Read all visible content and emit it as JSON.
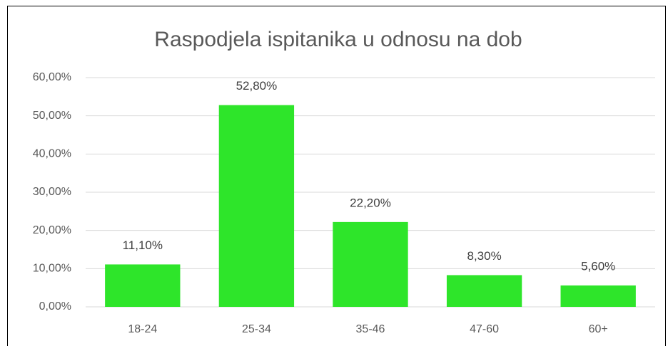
{
  "chart_data": {
    "type": "bar",
    "title": "Raspodjela ispitanika u odnosu na dob",
    "categories": [
      "18-24",
      "25-34",
      "35-46",
      "47-60",
      "60+"
    ],
    "values": [
      11.1,
      52.8,
      22.2,
      8.3,
      5.6
    ],
    "value_labels": [
      "11,10%",
      "52,80%",
      "22,20%",
      "8,30%",
      "5,60%"
    ],
    "color": "#2ee52a",
    "ylim": [
      0,
      60
    ],
    "yticks": [
      {
        "value": 0,
        "label": "0,00%"
      },
      {
        "value": 10,
        "label": "10,00%"
      },
      {
        "value": 20,
        "label": "20,00%"
      },
      {
        "value": 30,
        "label": "30,00%"
      },
      {
        "value": 40,
        "label": "40,00%"
      },
      {
        "value": 50,
        "label": "50,00%"
      },
      {
        "value": 60,
        "label": "60,00%"
      }
    ],
    "grid": true
  }
}
